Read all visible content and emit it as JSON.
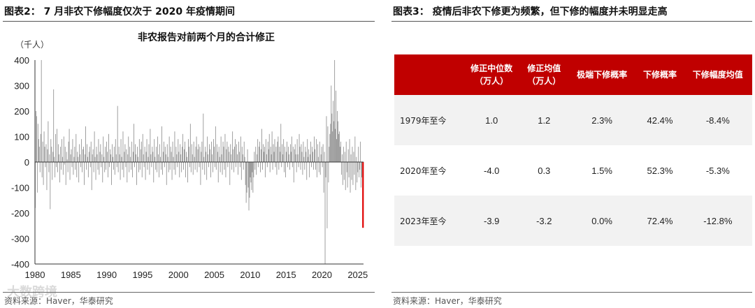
{
  "left_panel": {
    "figure_title": "图表2： 7 月非农下修幅度仅次于 2020 年疫情期间",
    "source": "资料来源：Haver，华泰研究",
    "watermark": "大数跨境"
  },
  "right_panel": {
    "figure_title": "图表3： 疫情后非农下修更为频繁，但下修的幅度并未明显走高",
    "source": "资料来源：Haver，华泰研究",
    "table": {
      "headers": [
        {
          "line1": "",
          "line2": ""
        },
        {
          "line1": "修正中位数",
          "line2": "（万人）"
        },
        {
          "line1": "修正均值",
          "line2": "（万人）"
        },
        {
          "line1": "极端下修概率",
          "line2": ""
        },
        {
          "line1": "下修概率",
          "line2": ""
        },
        {
          "line1": "下修幅度均值",
          "line2": ""
        }
      ],
      "rows": [
        {
          "period": "1979年至今",
          "median": "1.0",
          "mean": "1.2",
          "extreme": "2.3%",
          "prob": "42.4%",
          "avg_down": "-8.4%"
        },
        {
          "period": "2020年至今",
          "median": "-4.0",
          "mean": "0.3",
          "extreme": "1.5%",
          "prob": "52.3%",
          "avg_down": "-5.3%"
        },
        {
          "period": "2023年至今",
          "median": "-3.9",
          "mean": "-3.2",
          "extreme": "0.0%",
          "prob": "72.4%",
          "avg_down": "-12.8%"
        }
      ],
      "header_color": "#c00000",
      "shade_color": "#f2f2f2"
    }
  },
  "chart_data": {
    "type": "bar",
    "title": "非农报告对前两个月的合计修正",
    "unit_label": "（千人）",
    "ylim": [
      -400,
      400
    ],
    "yticks": [
      400,
      300,
      200,
      100,
      0,
      -100,
      -200,
      -300,
      -400
    ],
    "xticks": [
      1980,
      1985,
      1990,
      1995,
      2000,
      2005,
      2010,
      2015,
      2020,
      2025
    ],
    "x_range": [
      1980,
      2025.8
    ],
    "bar_color": "#8c8c8c",
    "highlight_color": "#e00000",
    "grid": false,
    "series": [
      {
        "values": [
          -180,
          200,
          180,
          -120,
          150,
          90,
          60,
          -40,
          110,
          400,
          -60,
          80,
          -90,
          120,
          60,
          -20,
          70,
          -110,
          50,
          160,
          -40,
          30,
          -185,
          90,
          60,
          -70,
          40,
          285,
          20,
          -60,
          110,
          -20,
          130,
          -40,
          70,
          30,
          -80,
          60,
          -30,
          90,
          20,
          -50,
          100,
          -10,
          60,
          -90,
          40,
          10,
          -40,
          80,
          130,
          -70,
          30,
          50,
          -20,
          90,
          -50,
          20,
          60,
          -30,
          110,
          -60,
          40,
          20,
          -80,
          70,
          30,
          -20,
          90,
          -40,
          50,
          60,
          -90,
          30,
          140,
          -30,
          70,
          20,
          -60,
          40,
          60,
          -20,
          80,
          -110,
          30,
          50,
          -40,
          120,
          20,
          -70,
          60,
          30,
          -30,
          90,
          -50,
          40,
          70,
          -20,
          30,
          -80,
          100,
          20,
          -40,
          60,
          -30,
          80,
          40,
          -60,
          110,
          -20,
          50,
          30,
          -90,
          70,
          20,
          -30,
          60,
          -50,
          90,
          30,
          -20,
          220,
          -40,
          60,
          30,
          -70,
          90,
          20,
          -30,
          120,
          -60,
          40,
          70,
          -20,
          50,
          -80,
          30,
          100,
          -40,
          60,
          20,
          -30,
          80,
          -60,
          40,
          150,
          -20,
          70,
          30,
          -90,
          60,
          20,
          -40,
          90,
          -30,
          50,
          80,
          -60,
          110,
          30,
          -20,
          60,
          -70,
          40,
          90,
          -30,
          20,
          70,
          -50,
          130,
          30,
          -20,
          60,
          40,
          -80,
          90,
          20,
          -30,
          60,
          -40,
          100,
          30,
          -60,
          70,
          20,
          -30,
          140,
          -50,
          40,
          80,
          -20,
          60,
          30,
          -90,
          70,
          20,
          -40,
          100,
          -30,
          60,
          40,
          -70,
          80,
          20,
          -30,
          120,
          -50,
          60,
          30,
          -20,
          90,
          40,
          -60,
          70,
          30,
          -40,
          60,
          110,
          -30,
          50,
          80,
          -60,
          40,
          20,
          -80,
          90,
          60,
          -20,
          150,
          -40,
          70,
          30,
          -50,
          80,
          20,
          -30,
          60,
          100,
          -40,
          50,
          70,
          -20,
          60,
          -90,
          40,
          80,
          -30,
          190,
          20,
          -50,
          60,
          40,
          -70,
          100,
          30,
          -20,
          70,
          50,
          -60,
          80,
          30,
          -40,
          90,
          60,
          -20,
          140,
          -30,
          70,
          40,
          -80,
          60,
          20,
          -40,
          100,
          30,
          -50,
          80,
          60,
          -30,
          110,
          -60,
          50,
          80,
          -20,
          60,
          40,
          -90,
          70,
          30,
          -30,
          120,
          50,
          -40,
          60,
          90,
          -20,
          70,
          30,
          -50,
          80,
          40,
          -20,
          100,
          -70,
          60,
          30,
          -30,
          80,
          20,
          -90,
          -160,
          -120,
          50,
          -100,
          -190,
          -140,
          -60,
          -80,
          -110,
          -40,
          -120,
          -60,
          40,
          -30,
          60,
          -50,
          30,
          90,
          -20,
          60,
          80,
          -40,
          50,
          130,
          -30,
          70,
          40,
          60,
          -60,
          90,
          30,
          -20,
          80,
          50,
          110,
          -40,
          60,
          30,
          120,
          -30,
          70,
          40,
          90,
          -20,
          60,
          -50,
          80,
          100,
          -30,
          60,
          40,
          150,
          -20,
          70,
          30,
          90,
          -40,
          60,
          -60,
          40,
          80,
          -20,
          60,
          30,
          -30,
          70,
          40,
          100,
          -20,
          60,
          -80,
          50,
          70,
          30,
          -40,
          90,
          30,
          -20,
          110,
          60,
          -30,
          70,
          40,
          -50,
          80,
          20,
          -30,
          60,
          40,
          -70,
          90,
          20,
          50,
          -60,
          30,
          80,
          -20,
          60,
          40,
          -30,
          100,
          50,
          -30,
          90,
          -60,
          70,
          20,
          -40,
          80,
          -50,
          30,
          60,
          -20,
          70,
          -120,
          40,
          -400,
          -60,
          180,
          -260,
          140,
          -80,
          60,
          110,
          150,
          300,
          190,
          120,
          240,
          160,
          400,
          130,
          280,
          90,
          200,
          160,
          110,
          120,
          60,
          80,
          -50,
          30,
          -90,
          60,
          -70,
          40,
          -110,
          80,
          -40,
          -100,
          50,
          -60,
          90,
          -120,
          30,
          -70,
          60,
          -90,
          40,
          -50,
          100,
          -110,
          20,
          -80,
          -40,
          60,
          -60,
          -30,
          80,
          -100,
          -60
        ]
      }
    ],
    "highlight_last": -258
  }
}
